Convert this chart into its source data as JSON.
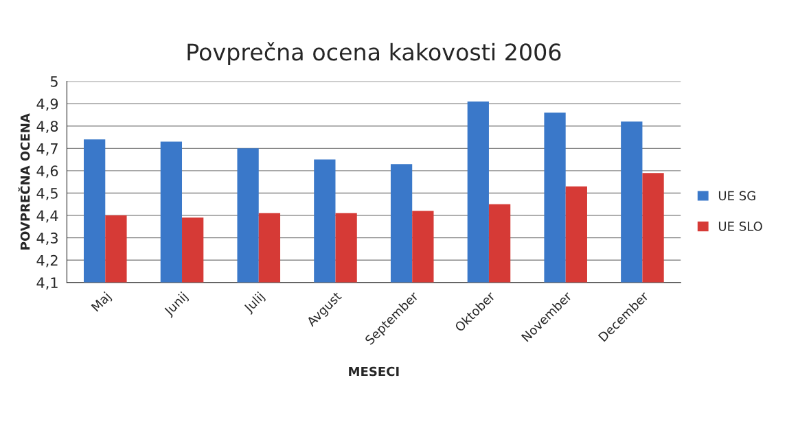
{
  "chart_data": {
    "type": "bar",
    "title": "Povprečna ocena kakovosti 2006",
    "xlabel": "MESECI",
    "ylabel": "POVPREČNA OCENA",
    "categories": [
      "Maj",
      "Junij",
      "Julij",
      "Avgust",
      "September",
      "Oktober",
      "November",
      "December"
    ],
    "series": [
      {
        "name": "UE SG",
        "color": "#3a78c9",
        "values": [
          4.74,
          4.73,
          4.7,
          4.65,
          4.63,
          4.91,
          4.86,
          4.82
        ]
      },
      {
        "name": "UE SLO",
        "color": "#d63a36",
        "values": [
          4.4,
          4.39,
          4.41,
          4.41,
          4.42,
          4.45,
          4.53,
          4.59
        ]
      }
    ],
    "ylim": [
      4.1,
      5
    ],
    "yticks": [
      {
        "value": 4.1,
        "label": "4,1"
      },
      {
        "value": 4.2,
        "label": "4,2"
      },
      {
        "value": 4.3,
        "label": "4,3"
      },
      {
        "value": 4.4,
        "label": "4,4"
      },
      {
        "value": 4.5,
        "label": "4,5"
      },
      {
        "value": 4.6,
        "label": "4,6"
      },
      {
        "value": 4.7,
        "label": "4,7"
      },
      {
        "value": 4.8,
        "label": "4,8"
      },
      {
        "value": 4.9,
        "label": "4,9"
      },
      {
        "value": 5,
        "label": "5"
      }
    ],
    "grid": "y",
    "legend": "right"
  }
}
